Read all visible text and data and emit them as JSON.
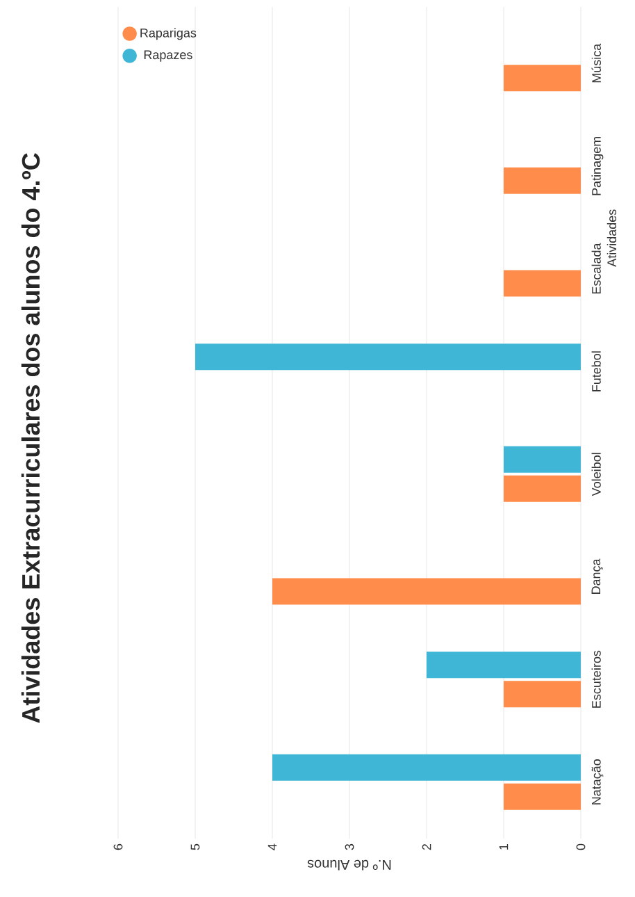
{
  "chart_data": {
    "type": "bar",
    "orientation": "horizontal",
    "title": "Atividades Extracurriculares dos alunos do 4.ºC",
    "xlabel": "N.º de Alunos",
    "ylabel": "Atividades",
    "categories": [
      "Música",
      "Patinagem",
      "Escalada",
      "Futebol",
      "Voleibol",
      "Dança",
      "Escuteiros",
      "Natação"
    ],
    "series": [
      {
        "name": "Raparigas",
        "color": "#ff8c4a",
        "values": [
          1,
          1,
          1,
          0,
          1,
          4,
          1,
          1
        ]
      },
      {
        "name": "Rapazes",
        "color": "#3fb6d6",
        "values": [
          0,
          0,
          0,
          5,
          1,
          0,
          2,
          4
        ]
      }
    ],
    "xlim": [
      6,
      0
    ],
    "xticks": [
      0,
      1,
      2,
      3,
      4,
      5,
      6
    ],
    "grid": "x",
    "legend": "left"
  }
}
